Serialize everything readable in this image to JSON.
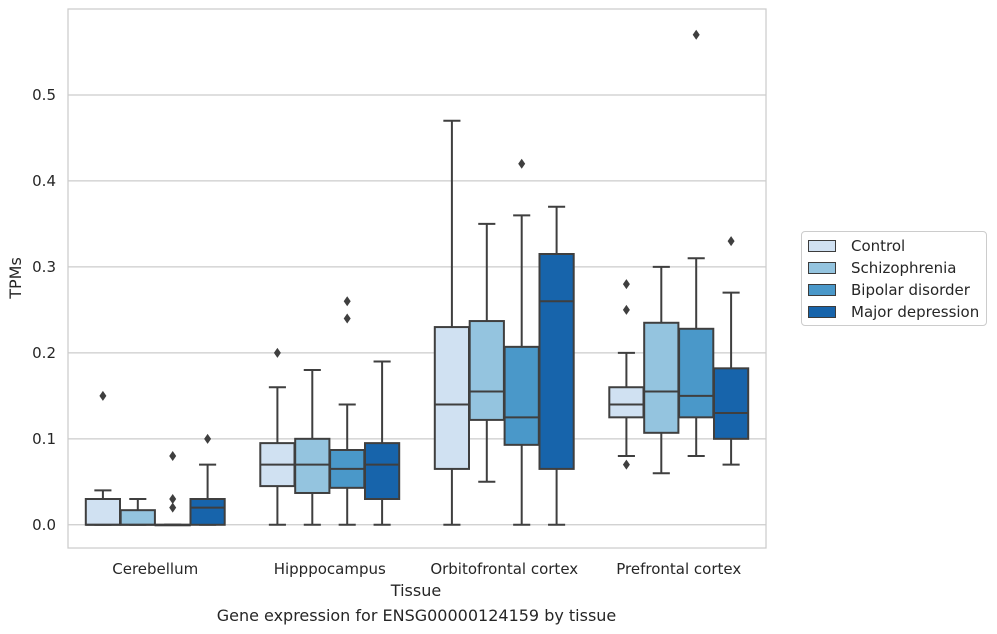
{
  "chart_data": {
    "type": "box",
    "title": "",
    "caption": "Gene expression for ENSG00000124159 by tissue",
    "xlabel": "Tissue",
    "ylabel": "TPMs",
    "ylim": [
      -0.027,
      0.6
    ],
    "yticks": [
      "0.0",
      "0.1",
      "0.2",
      "0.3",
      "0.4",
      "0.5"
    ],
    "grid": true,
    "legend_position": "right",
    "categories": [
      "Cerebellum",
      "Hipppocampus",
      "Orbitofrontal cortex",
      "Prefrontal cortex"
    ],
    "series": [
      {
        "name": "Control",
        "color": "#d0e1f2",
        "boxes": [
          {
            "low": 0.0,
            "q1": 0.0,
            "median": 0.0,
            "q3": 0.03,
            "high": 0.04,
            "outliers": [
              0.15
            ]
          },
          {
            "low": 0.0,
            "q1": 0.045,
            "median": 0.07,
            "q3": 0.095,
            "high": 0.16,
            "outliers": [
              0.2
            ]
          },
          {
            "low": 0.0,
            "q1": 0.065,
            "median": 0.14,
            "q3": 0.23,
            "high": 0.47,
            "outliers": []
          },
          {
            "low": 0.08,
            "q1": 0.125,
            "median": 0.14,
            "q3": 0.16,
            "high": 0.2,
            "outliers": [
              0.07,
              0.25,
              0.28
            ]
          }
        ]
      },
      {
        "name": "Schizophrenia",
        "color": "#94c4df",
        "boxes": [
          {
            "low": 0.0,
            "q1": 0.0,
            "median": 0.0,
            "q3": 0.017,
            "high": 0.03,
            "outliers": []
          },
          {
            "low": 0.0,
            "q1": 0.037,
            "median": 0.07,
            "q3": 0.1,
            "high": 0.18,
            "outliers": []
          },
          {
            "low": 0.05,
            "q1": 0.122,
            "median": 0.155,
            "q3": 0.237,
            "high": 0.35,
            "outliers": []
          },
          {
            "low": 0.06,
            "q1": 0.107,
            "median": 0.155,
            "q3": 0.235,
            "high": 0.3,
            "outliers": []
          }
        ]
      },
      {
        "name": "Bipolar disorder",
        "color": "#4a98c9",
        "boxes": [
          {
            "low": 0.0,
            "q1": 0.0,
            "median": 0.0,
            "q3": 0.0,
            "high": 0.0,
            "outliers": [
              0.02,
              0.03,
              0.08
            ]
          },
          {
            "low": 0.0,
            "q1": 0.043,
            "median": 0.065,
            "q3": 0.087,
            "high": 0.14,
            "outliers": [
              0.24,
              0.26
            ]
          },
          {
            "low": 0.0,
            "q1": 0.093,
            "median": 0.125,
            "q3": 0.207,
            "high": 0.36,
            "outliers": [
              0.42
            ]
          },
          {
            "low": 0.08,
            "q1": 0.125,
            "median": 0.15,
            "q3": 0.228,
            "high": 0.31,
            "outliers": [
              0.57
            ]
          }
        ]
      },
      {
        "name": "Major depression",
        "color": "#1764ab",
        "boxes": [
          {
            "low": 0.0,
            "q1": 0.0,
            "median": 0.02,
            "q3": 0.03,
            "high": 0.07,
            "outliers": [
              0.1
            ]
          },
          {
            "low": 0.0,
            "q1": 0.03,
            "median": 0.07,
            "q3": 0.095,
            "high": 0.19,
            "outliers": []
          },
          {
            "low": 0.0,
            "q1": 0.065,
            "median": 0.26,
            "q3": 0.315,
            "high": 0.37,
            "outliers": []
          },
          {
            "low": 0.07,
            "q1": 0.1,
            "median": 0.13,
            "q3": 0.182,
            "high": 0.27,
            "outliers": [
              0.33
            ]
          }
        ]
      }
    ]
  }
}
